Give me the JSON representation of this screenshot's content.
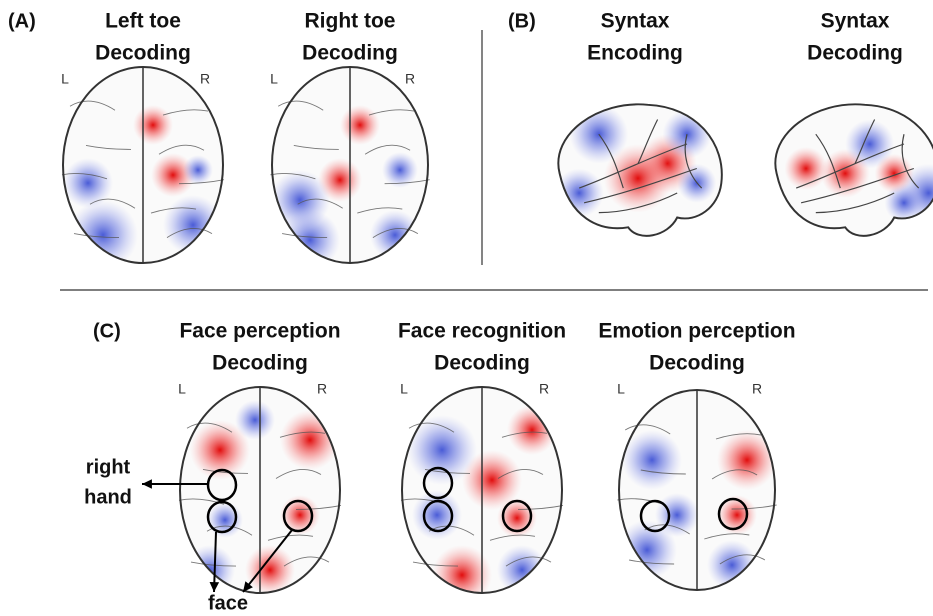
{
  "panels": [
    {
      "label": "(A)",
      "brains": [
        {
          "title": [
            "Left toe",
            "Decoding"
          ],
          "left": "L",
          "right": "R"
        },
        {
          "title": [
            "Right toe",
            "Decoding"
          ],
          "left": "L",
          "right": "R"
        }
      ]
    },
    {
      "label": "(B)",
      "brains": [
        {
          "title": [
            "Syntax",
            "Encoding"
          ]
        },
        {
          "title": [
            "Syntax",
            "Decoding"
          ]
        }
      ]
    },
    {
      "label": "(C)",
      "brains": [
        {
          "title": [
            "Face perception",
            "Decoding"
          ],
          "left": "L",
          "right": "R"
        },
        {
          "title": [
            "Face recognition",
            "Decoding"
          ],
          "left": "L",
          "right": "R"
        },
        {
          "title": [
            "Emotion perception",
            "Decoding"
          ],
          "left": "L",
          "right": "R"
        }
      ]
    }
  ],
  "annotations": {
    "right_hand": [
      "right",
      "hand"
    ],
    "face": "face"
  }
}
